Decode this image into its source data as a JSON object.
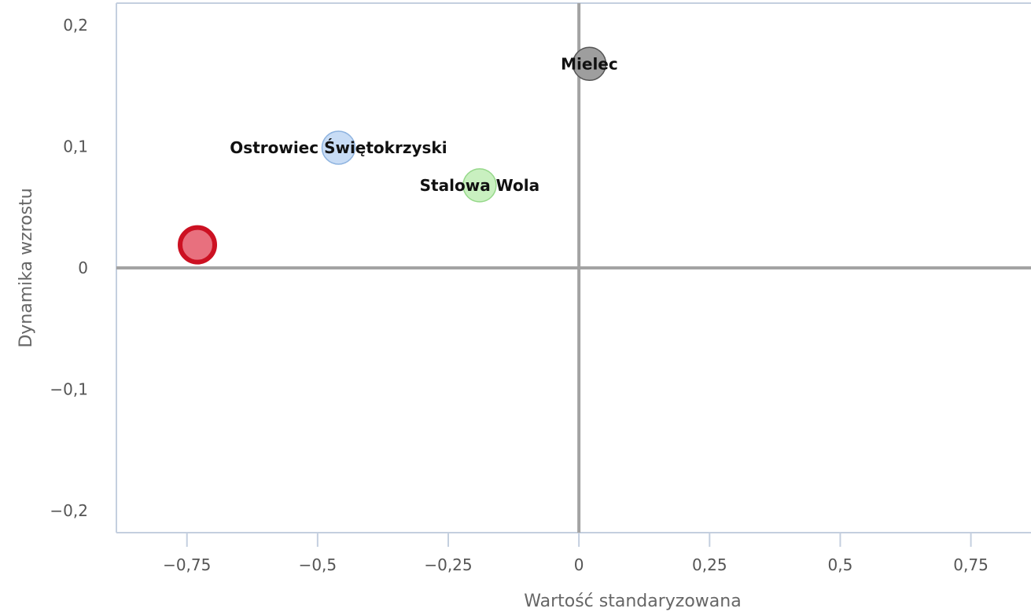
{
  "chart_data": {
    "type": "scatter",
    "xlabel": "Wartość standaryzowana",
    "ylabel": "Dynamika wzrostu",
    "xlim": [
      -0.885,
      0.865
    ],
    "ylim": [
      -0.218,
      0.218
    ],
    "x_ticks": [
      -0.75,
      -0.5,
      -0.25,
      0,
      0.25,
      0.5,
      0.75
    ],
    "x_tick_labels": [
      "−0,75",
      "−0,5",
      "−0,25",
      "0",
      "0,25",
      "0,5",
      "0,75"
    ],
    "y_ticks": [
      -0.2,
      -0.1,
      0,
      0.1,
      0.2
    ],
    "y_tick_labels": [
      "−0,2",
      "−0,1",
      "0",
      "0,1",
      "0,2"
    ],
    "grid": false,
    "points": [
      {
        "label": "Mielec",
        "x": 0.02,
        "y": 0.168,
        "color": "#9e9e9e",
        "stroke": "#555555"
      },
      {
        "label": "Ostrowiec Świętokrzyski",
        "x": -0.46,
        "y": 0.099,
        "color": "#c8dcf5",
        "stroke": "#8fb4e0"
      },
      {
        "label": "Stalowa Wola",
        "x": -0.19,
        "y": 0.068,
        "color": "#c9f0c0",
        "stroke": "#96d88a"
      },
      {
        "label": "",
        "x": -0.73,
        "y": 0.019,
        "color": "#e8707e",
        "stroke": "#cc1122"
      }
    ]
  }
}
